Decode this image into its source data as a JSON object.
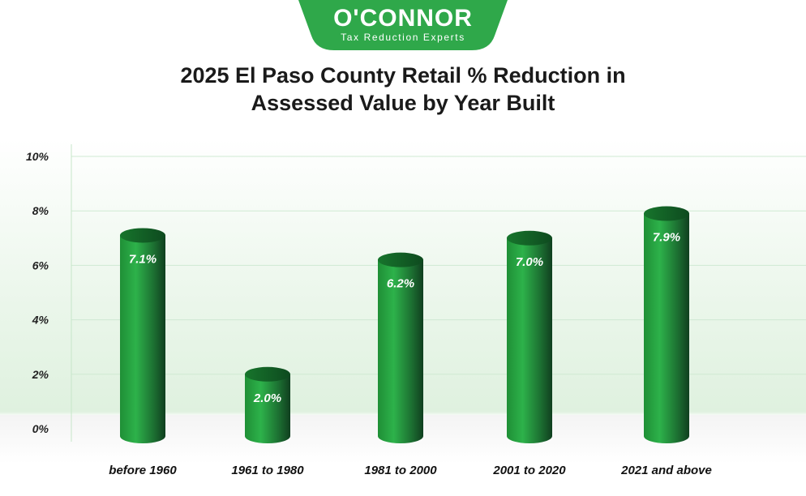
{
  "brand": {
    "name": "O'CONNOR",
    "tagline": "Tax Reduction Experts",
    "color": "#2fa84a"
  },
  "chart_data": {
    "type": "bar",
    "title_line1": "2025 El Paso County Retail % Reduction in",
    "title_line2": "Assessed Value by Year Built",
    "categories": [
      "before 1960",
      "1961 to 1980",
      "1981 to 2000",
      "2001 to 2020",
      "2021 and above"
    ],
    "values": [
      7.1,
      2.0,
      6.2,
      7.0,
      7.9
    ],
    "data_labels": [
      "7.1%",
      "2.0%",
      "6.2%",
      "7.0%",
      "7.9%"
    ],
    "yticks": [
      "0%",
      "2%",
      "4%",
      "6%",
      "8%",
      "10%"
    ],
    "ylim": [
      0,
      10
    ],
    "grid": true,
    "legend": "none",
    "bar_color": "#27a33f",
    "bar_dark": "#0f4a22"
  }
}
